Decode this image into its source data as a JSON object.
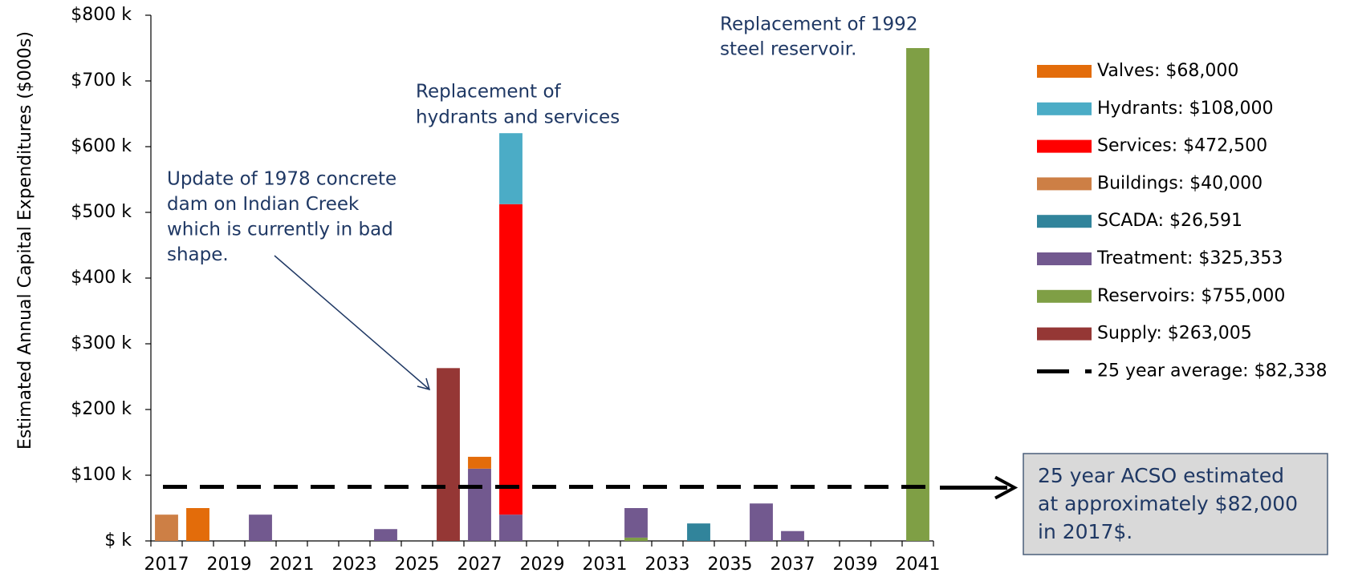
{
  "chart_data": {
    "type": "stacked_bar",
    "y_axis_label": "Estimated Annual Capital Expenditures ($000s)",
    "categories": [
      "2017",
      null,
      "2019",
      null,
      "2021",
      null,
      "2023",
      null,
      "2025",
      null,
      "2027",
      null,
      "2029",
      null,
      "2031",
      null,
      "2033",
      null,
      "2035",
      null,
      "2037",
      null,
      "2039",
      null,
      "2041"
    ],
    "series": [
      {
        "name": "Valves: $68,000",
        "color": "#e36c0a",
        "values": [
          0,
          50,
          0,
          0,
          0,
          0,
          0,
          0,
          0,
          0,
          18,
          0,
          0,
          0,
          0,
          0,
          0,
          0,
          0,
          0,
          0,
          0,
          0,
          0,
          0
        ]
      },
      {
        "name": "Hydrants: $108,000",
        "color": "#4bacc6",
        "values": [
          0,
          0,
          0,
          0,
          0,
          0,
          0,
          0,
          0,
          0,
          0,
          108,
          0,
          0,
          0,
          0,
          0,
          0,
          0,
          0,
          0,
          0,
          0,
          0,
          0
        ]
      },
      {
        "name": "Services: $472,500",
        "color": "#ff0000",
        "values": [
          0,
          0,
          0,
          0,
          0,
          0,
          0,
          0,
          0,
          0,
          0,
          472.5,
          0,
          0,
          0,
          0,
          0,
          0,
          0,
          0,
          0,
          0,
          0,
          0,
          0
        ]
      },
      {
        "name": "Buildings: $40,000",
        "color": "#cd7f45",
        "values": [
          40,
          0,
          0,
          0,
          0,
          0,
          0,
          0,
          0,
          0,
          0,
          0,
          0,
          0,
          0,
          0,
          0,
          0,
          0,
          0,
          0,
          0,
          0,
          0,
          0
        ]
      },
      {
        "name": "SCADA: $26,591",
        "color": "#31849b",
        "values": [
          0,
          0,
          0,
          0,
          0,
          0,
          0,
          0,
          0,
          0,
          0,
          0,
          0,
          0,
          0,
          0,
          0,
          26.6,
          0,
          0,
          0,
          0,
          0,
          0,
          0
        ]
      },
      {
        "name": "Treatment: $325,353",
        "color": "#72598f",
        "values": [
          0,
          0,
          0,
          40,
          0,
          0,
          0,
          18,
          0,
          0,
          110,
          40,
          0,
          0,
          0,
          45,
          0,
          0,
          0,
          57,
          15,
          0,
          0,
          0,
          0
        ]
      },
      {
        "name": "Reservoirs: $755,000",
        "color": "#7f9f45",
        "values": [
          0,
          0,
          0,
          0,
          0,
          0,
          0,
          0,
          0,
          0,
          0,
          0,
          0,
          0,
          0,
          5,
          0,
          0,
          0,
          0,
          0,
          0,
          0,
          0,
          750
        ]
      },
      {
        "name": "Supply: $263,005",
        "color": "#953735",
        "values": [
          0,
          0,
          0,
          0,
          0,
          0,
          0,
          0,
          0,
          263,
          0,
          0,
          0,
          0,
          0,
          0,
          0,
          0,
          0,
          0,
          0,
          0,
          0,
          0,
          0
        ]
      }
    ],
    "average": {
      "name": "25 year average: $82,338",
      "value": 82.338,
      "color": "#000000"
    },
    "ylim": [
      0,
      800
    ],
    "yticks": [
      {
        "value": 0,
        "label": "$ k"
      },
      {
        "value": 100,
        "label": "$100 k"
      },
      {
        "value": 200,
        "label": "$200 k"
      },
      {
        "value": 300,
        "label": "$300 k"
      },
      {
        "value": 400,
        "label": "$400 k"
      },
      {
        "value": 500,
        "label": "$500 k"
      },
      {
        "value": 600,
        "label": "$600 k"
      },
      {
        "value": 700,
        "label": "$700 k"
      },
      {
        "value": 800,
        "label": "$800 k"
      }
    ],
    "annotations": [
      {
        "lines": [
          "Update of 1978 concrete",
          "dam on Indian Creek",
          "which is currently in bad",
          "shape."
        ]
      },
      {
        "lines": [
          "Replacement of",
          "hydrants and services"
        ]
      },
      {
        "lines": [
          "Replacement of 1992",
          "steel reservoir."
        ]
      }
    ],
    "callout": {
      "lines": [
        "25 year ACSO estimated",
        "at approximately $82,000",
        "in 2017$."
      ]
    }
  }
}
